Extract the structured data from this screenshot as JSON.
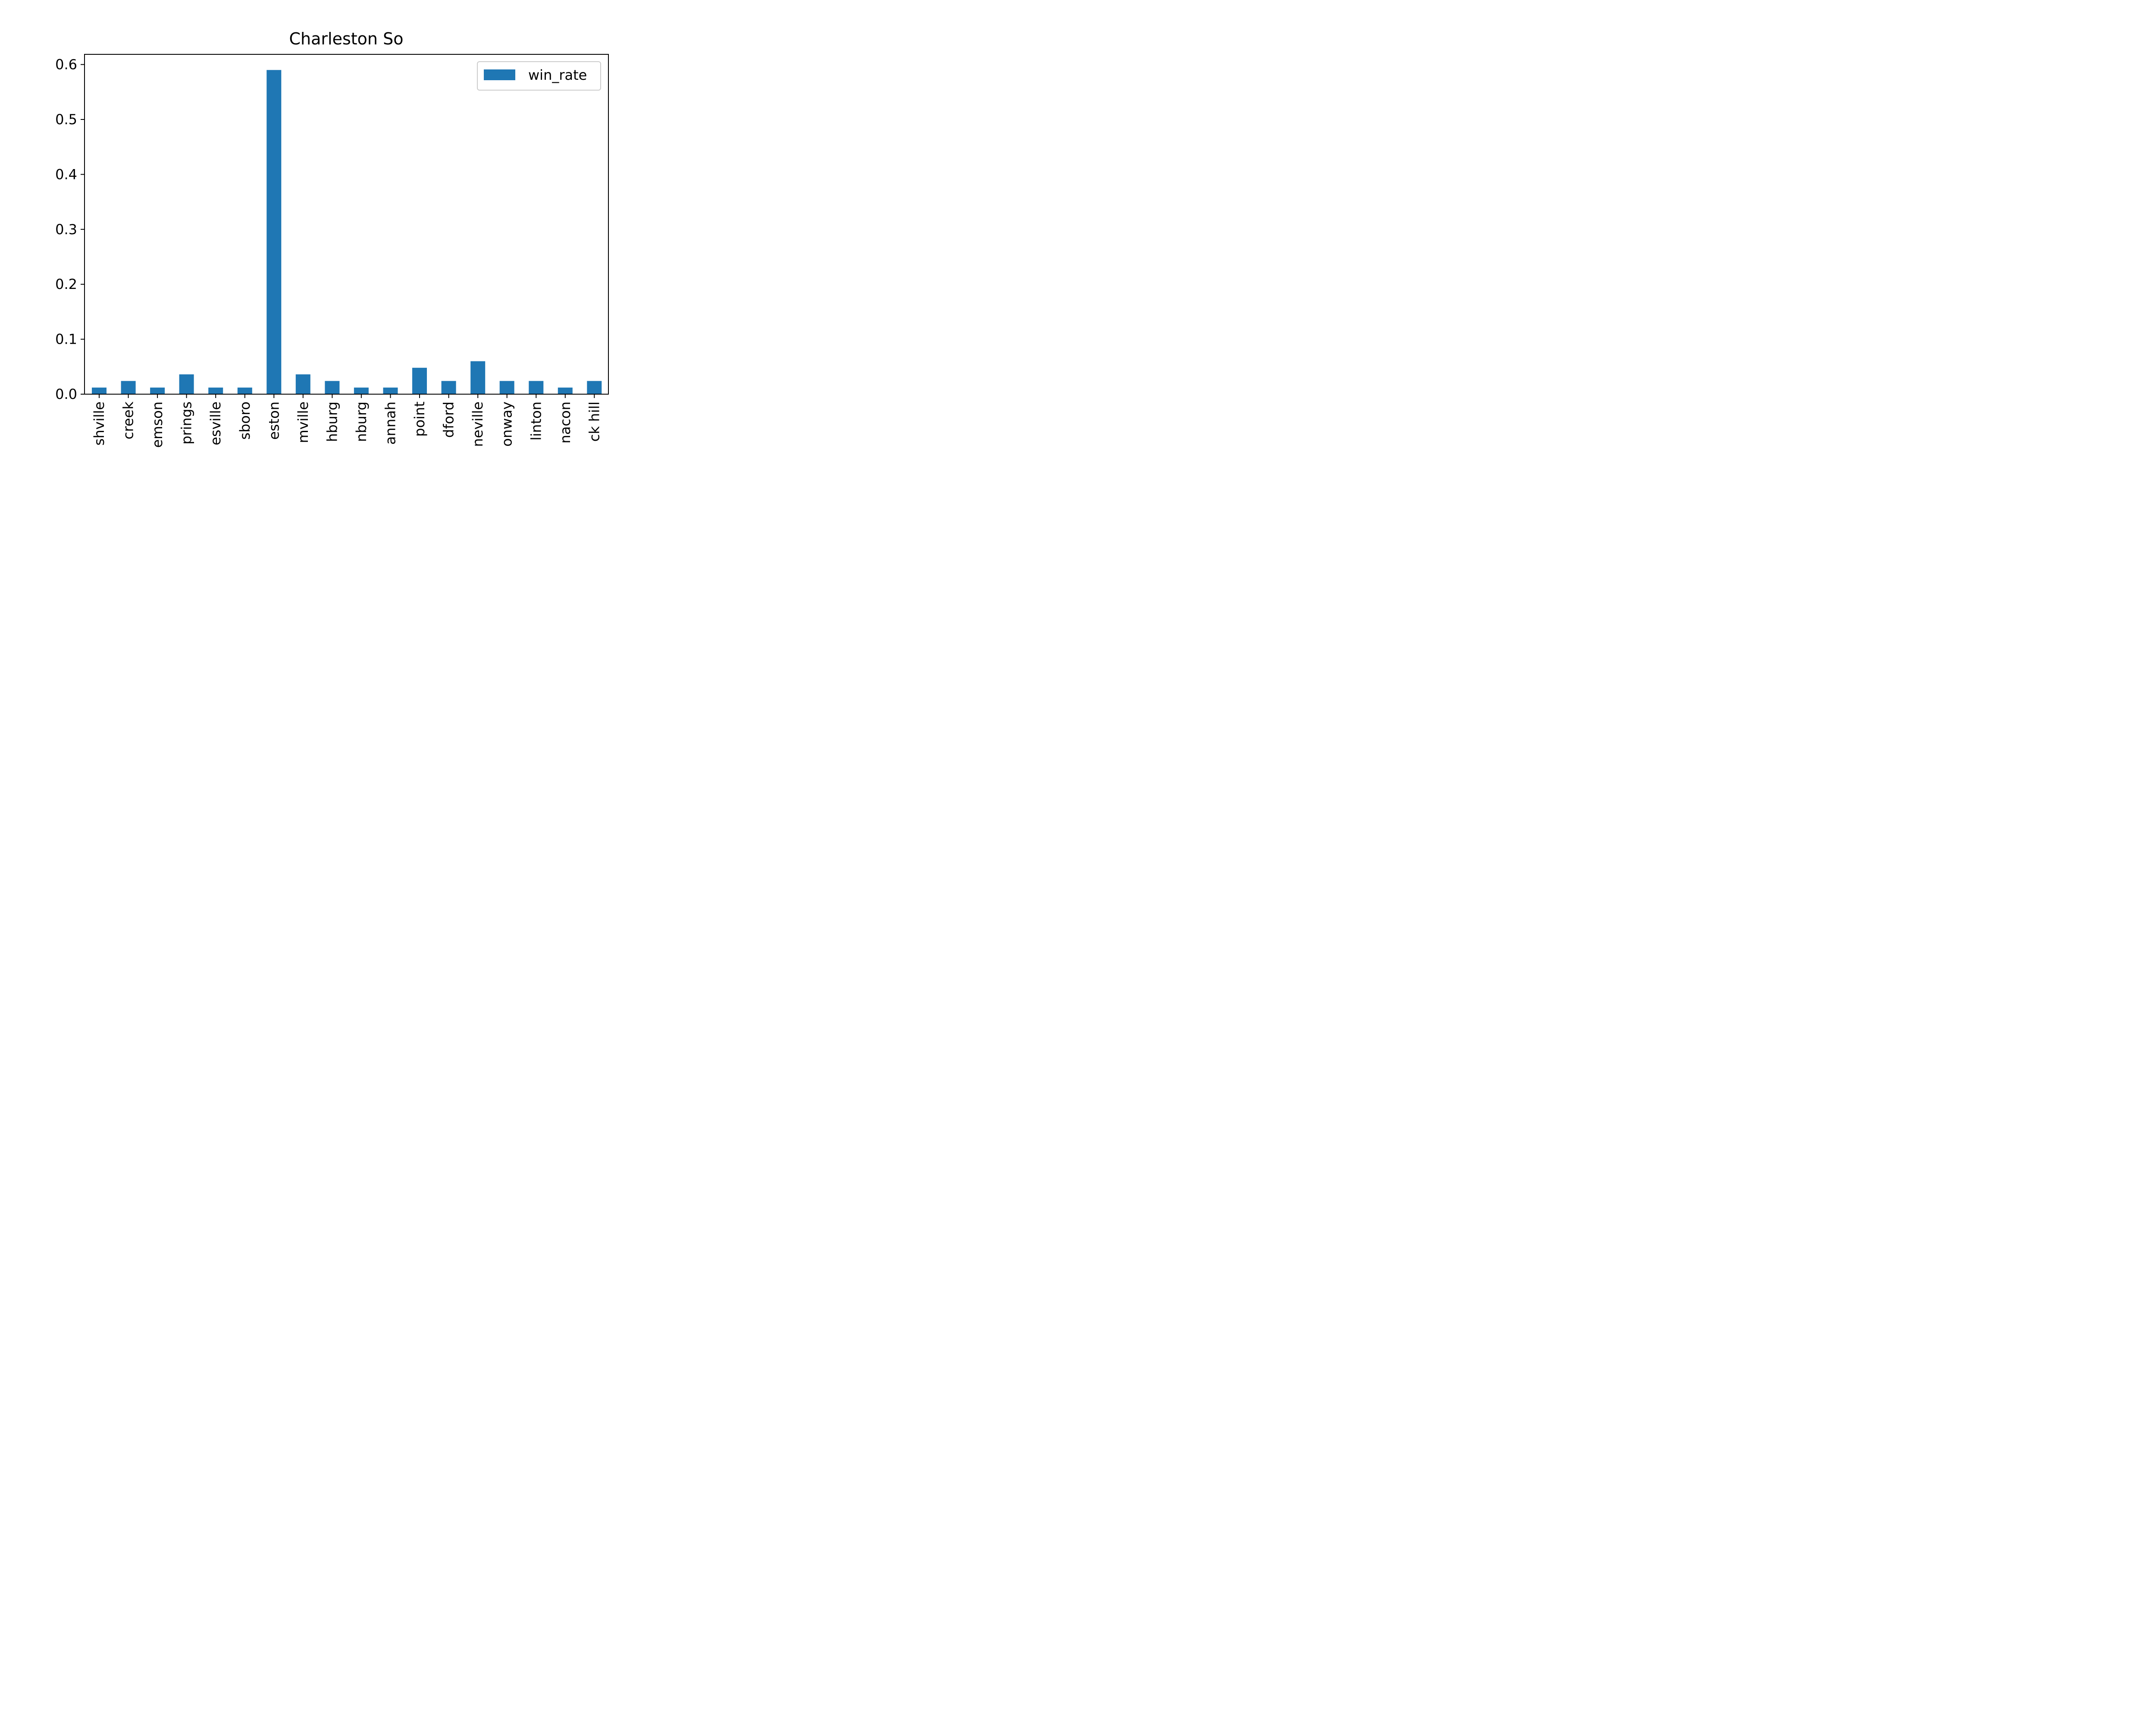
{
  "chart_data": {
    "type": "bar",
    "title": "Charleston So",
    "xlabel": "",
    "ylabel": "",
    "categories": [
      "shville",
      "creek",
      "emson",
      "prings",
      "esville",
      "sboro",
      "eston",
      "mville",
      "hburg",
      "nburg",
      "annah",
      "point",
      "dford",
      "neville",
      "onway",
      "linton",
      "nacon",
      "ck hill"
    ],
    "series": [
      {
        "name": "win_rate",
        "color": "#1f77b4",
        "values": [
          0.012,
          0.024,
          0.012,
          0.036,
          0.012,
          0.012,
          0.59,
          0.036,
          0.024,
          0.012,
          0.012,
          0.048,
          0.024,
          0.06,
          0.024,
          0.024,
          0.012,
          0.024
        ]
      }
    ],
    "ylim": [
      0,
      0.62
    ],
    "yticks": [
      "0.0",
      "0.1",
      "0.2",
      "0.3",
      "0.4",
      "0.5",
      "0.6"
    ],
    "ytick_values": [
      0,
      0.1,
      0.2,
      0.3,
      0.4,
      0.5,
      0.6
    ],
    "legend_position": "top-right",
    "grid": false
  }
}
